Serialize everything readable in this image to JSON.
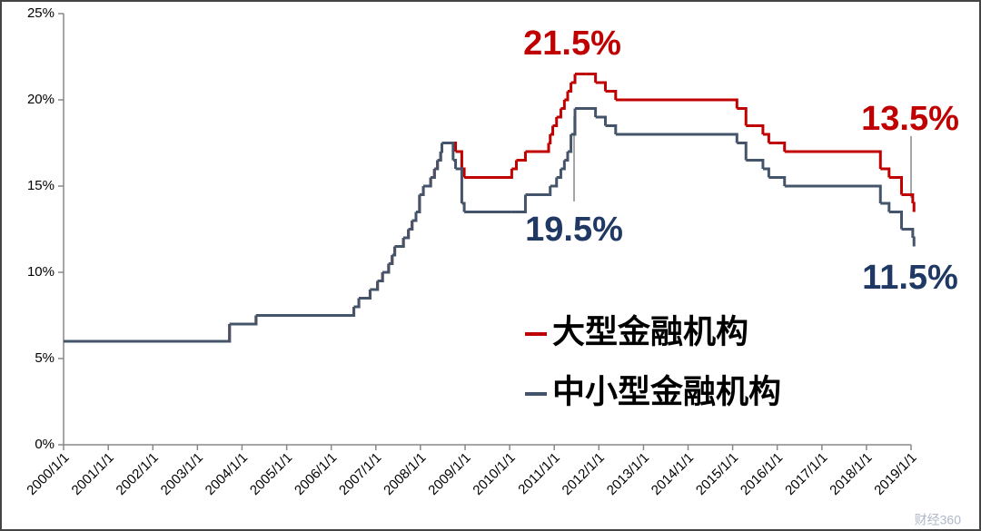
{
  "chart_data": {
    "type": "line",
    "x": [
      "2000/1/1",
      "2003/9/21",
      "2004/4/25",
      "2006/7/5",
      "2006/8/15",
      "2006/11/15",
      "2007/1/15",
      "2007/2/25",
      "2007/4/16",
      "2007/5/15",
      "2007/6/5",
      "2007/8/15",
      "2007/9/25",
      "2007/10/25",
      "2007/11/26",
      "2007/12/25",
      "2008/1/25",
      "2008/3/25",
      "2008/4/25",
      "2008/5/20",
      "2008/6/15",
      "2008/6/25",
      "2008/9/25",
      "2008/10/15",
      "2008/12/5",
      "2008/12/25",
      "2010/1/18",
      "2010/2/25",
      "2010/5/10",
      "2010/11/16",
      "2010/11/29",
      "2010/12/20",
      "2011/1/20",
      "2011/2/24",
      "2011/3/25",
      "2011/4/21",
      "2011/5/18",
      "2011/6/20",
      "2011/12/5",
      "2012/2/24",
      "2012/5/18",
      "2015/2/5",
      "2015/4/20",
      "2015/9/6",
      "2015/10/24",
      "2016/3/1",
      "2018/4/25",
      "2018/7/5",
      "2018/10/15",
      "2019/1/15",
      "2019/1/25"
    ],
    "series": [
      {
        "name": "大型金融机构",
        "color": "#c00000",
        "values": [
          6,
          7,
          7.5,
          8,
          8.5,
          9,
          9.5,
          10,
          10.5,
          11,
          11.5,
          12,
          12.5,
          13,
          13.5,
          14.5,
          15,
          15.5,
          16,
          16.5,
          17,
          17.5,
          17.5,
          17,
          16,
          15.5,
          16,
          16.5,
          17,
          17.5,
          18,
          18.5,
          19,
          19.5,
          20,
          20.5,
          21,
          21.5,
          21,
          20.5,
          20,
          19.5,
          18.5,
          18,
          17.5,
          17,
          16,
          15.5,
          14.5,
          14,
          13.5
        ]
      },
      {
        "name": "中小型金融机构",
        "color": "#44546a",
        "values": [
          6,
          7,
          7.5,
          8,
          8.5,
          9,
          9.5,
          10,
          10.5,
          11,
          11.5,
          12,
          12.5,
          13,
          13.5,
          14.5,
          15,
          15.5,
          16,
          16.5,
          17,
          17.5,
          16.5,
          16,
          14,
          13.5,
          13.5,
          13.5,
          14.5,
          14.5,
          15,
          15,
          15.5,
          16,
          16.5,
          17,
          18,
          19.5,
          19,
          18.5,
          18,
          17.5,
          16.5,
          16,
          15.5,
          15,
          14,
          13.5,
          12.5,
          12,
          11.5
        ]
      }
    ],
    "xlim": [
      "2000/1/1",
      "2019/1/1"
    ],
    "xticks": [
      "2000/1/1",
      "2001/1/1",
      "2002/1/1",
      "2003/1/1",
      "2004/1/1",
      "2005/1/1",
      "2006/1/1",
      "2007/1/1",
      "2008/1/1",
      "2009/1/1",
      "2010/1/1",
      "2011/1/1",
      "2012/1/1",
      "2013/1/1",
      "2014/1/1",
      "2015/1/1",
      "2016/1/1",
      "2017/1/1",
      "2018/1/1",
      "2019/1/1"
    ],
    "ylim": [
      0,
      25
    ],
    "yticks": [
      {
        "value": 0,
        "label": "0%"
      },
      {
        "value": 5,
        "label": "5%"
      },
      {
        "value": 10,
        "label": "10%"
      },
      {
        "value": 15,
        "label": "15%"
      },
      {
        "value": 20,
        "label": "20%"
      },
      {
        "value": 25,
        "label": "25%"
      }
    ],
    "annotations": [
      {
        "text": "21.5%",
        "color": "#c00000"
      },
      {
        "text": "19.5%",
        "color": "#1f3864"
      },
      {
        "text": "13.5%",
        "color": "#c00000"
      },
      {
        "text": "11.5%",
        "color": "#1f3864"
      }
    ],
    "watermark": "财经360"
  }
}
